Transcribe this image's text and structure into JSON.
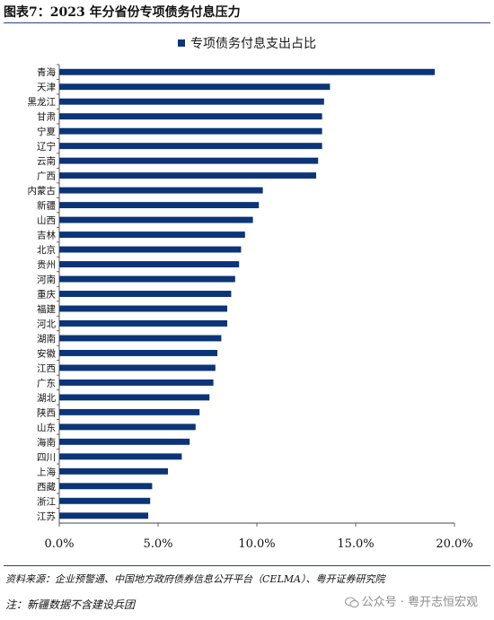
{
  "figure": {
    "title": "图表7：2023 年分省份专项债务付息压力",
    "source": "资料来源：企业预警通、中国地方政府债券信息公开平台（CELMA）、粤开证券研究院",
    "note": "注：新疆数据不含建设兵团"
  },
  "watermark": {
    "text": "公众号 · 粤开志恒宏观",
    "icon": "wechat-icon"
  },
  "chart_data": {
    "type": "bar",
    "orientation": "horizontal",
    "title": "",
    "xlabel": "",
    "ylabel": "",
    "xlim": [
      0,
      0.2
    ],
    "x_ticks": [
      0,
      0.05,
      0.1,
      0.15,
      0.2
    ],
    "x_tick_labels": [
      "0.0%",
      "5.0%",
      "10.0%",
      "15.0%",
      "20.0%"
    ],
    "grid": false,
    "legend_position": "top-center",
    "bar_color": "#0c3478",
    "categories": [
      "青海",
      "天津",
      "黑龙江",
      "甘肃",
      "宁夏",
      "辽宁",
      "云南",
      "广西",
      "内蒙古",
      "新疆",
      "山西",
      "吉林",
      "北京",
      "贵州",
      "河南",
      "重庆",
      "福建",
      "河北",
      "湖南",
      "安徽",
      "江西",
      "广东",
      "湖北",
      "陕西",
      "山东",
      "海南",
      "四川",
      "上海",
      "西藏",
      "浙江",
      "江苏"
    ],
    "series": [
      {
        "name": "专项债务付息支出占比",
        "values": [
          0.19,
          0.137,
          0.134,
          0.133,
          0.133,
          0.133,
          0.131,
          0.13,
          0.103,
          0.101,
          0.098,
          0.094,
          0.092,
          0.091,
          0.089,
          0.087,
          0.085,
          0.085,
          0.082,
          0.08,
          0.079,
          0.078,
          0.076,
          0.071,
          0.069,
          0.066,
          0.062,
          0.055,
          0.047,
          0.046,
          0.045
        ]
      }
    ]
  }
}
